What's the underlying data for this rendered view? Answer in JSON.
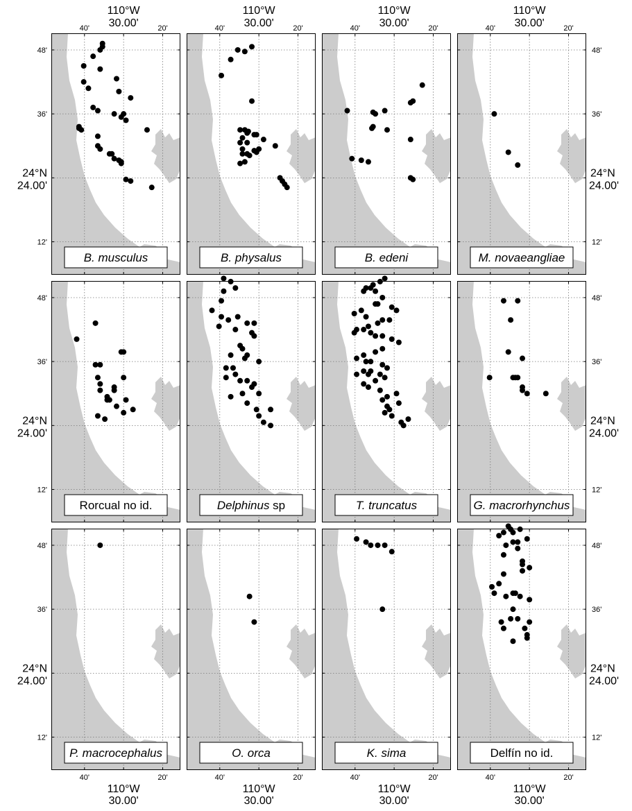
{
  "axis_labels": {
    "lon_deg": "110°W",
    "lon_min": "30.00'",
    "lat_deg": "24°N",
    "lat_min": "24.00'",
    "x_ticks": [
      "40'",
      "20'"
    ],
    "y_ticks": [
      "48'",
      "36'",
      "12'"
    ]
  },
  "colors": {
    "land": "#cccccc",
    "sea": "#ffffff",
    "points": "#000000",
    "grid": "#777777"
  },
  "chart_data": {
    "type": "scatter",
    "grid": true,
    "xlim": [
      -110.808,
      -110.258
    ],
    "ylim": [
      24.097,
      24.852
    ],
    "x_ticks": [
      -110.6667,
      -110.5,
      -110.3333
    ],
    "y_ticks": [
      24.2,
      24.4,
      24.6,
      24.8
    ],
    "panels": [
      {
        "label": "B. musculus",
        "italic": true,
        "points": [
          [
            -110.59,
            24.82
          ],
          [
            -110.59,
            24.81
          ],
          [
            -110.6,
            24.8
          ],
          [
            -110.63,
            24.78
          ],
          [
            -110.67,
            24.75
          ],
          [
            -110.6,
            24.74
          ],
          [
            -110.53,
            24.71
          ],
          [
            -110.67,
            24.7
          ],
          [
            -110.65,
            24.68
          ],
          [
            -110.52,
            24.67
          ],
          [
            -110.47,
            24.65
          ],
          [
            -110.63,
            24.62
          ],
          [
            -110.61,
            24.61
          ],
          [
            -110.5,
            24.6
          ],
          [
            -110.54,
            24.6
          ],
          [
            -110.49,
            24.58
          ],
          [
            -110.51,
            24.59
          ],
          [
            -110.69,
            24.56
          ],
          [
            -110.68,
            24.55
          ],
          [
            -110.69,
            24.555
          ],
          [
            -110.4,
            24.55
          ],
          [
            -110.61,
            24.53
          ],
          [
            -110.61,
            24.5
          ],
          [
            -110.6,
            24.49
          ],
          [
            -110.55,
            24.475
          ],
          [
            -110.56,
            24.475
          ],
          [
            -110.54,
            24.46
          ],
          [
            -110.52,
            24.455
          ],
          [
            -110.51,
            24.45
          ],
          [
            -110.51,
            24.445
          ],
          [
            -110.49,
            24.395
          ],
          [
            -110.47,
            24.39
          ],
          [
            -110.38,
            24.37
          ]
        ]
      },
      {
        "label": "B. physalus",
        "italic": true,
        "points": [
          [
            -110.53,
            24.81
          ],
          [
            -110.59,
            24.8
          ],
          [
            -110.56,
            24.795
          ],
          [
            -110.62,
            24.77
          ],
          [
            -110.66,
            24.72
          ],
          [
            -110.53,
            24.64
          ],
          [
            -110.56,
            24.55
          ],
          [
            -110.58,
            24.55
          ],
          [
            -110.55,
            24.54
          ],
          [
            -110.51,
            24.535
          ],
          [
            -110.52,
            24.535
          ],
          [
            -110.57,
            24.525
          ],
          [
            -110.48,
            24.52
          ],
          [
            -110.58,
            24.51
          ],
          [
            -110.55,
            24.51
          ],
          [
            -110.57,
            24.49
          ],
          [
            -110.54,
            24.47
          ],
          [
            -110.5,
            24.49
          ],
          [
            -110.51,
            24.48
          ],
          [
            -110.43,
            24.5
          ],
          [
            -110.52,
            24.485
          ],
          [
            -110.57,
            24.475
          ],
          [
            -110.55,
            24.475
          ],
          [
            -110.56,
            24.45
          ],
          [
            -110.58,
            24.445
          ],
          [
            -110.41,
            24.4
          ],
          [
            -110.4,
            24.39
          ],
          [
            -110.39,
            24.38
          ],
          [
            -110.38,
            24.37
          ],
          [
            -110.545,
            24.545
          ]
        ]
      },
      {
        "label": "B. edeni",
        "italic": true,
        "points": [
          [
            -110.38,
            24.69
          ],
          [
            -110.42,
            24.64
          ],
          [
            -110.43,
            24.635
          ],
          [
            -110.7,
            24.61
          ],
          [
            -110.59,
            24.605
          ],
          [
            -110.58,
            24.6
          ],
          [
            -110.54,
            24.61
          ],
          [
            -110.59,
            24.56
          ],
          [
            -110.53,
            24.55
          ],
          [
            -110.43,
            24.52
          ],
          [
            -110.68,
            24.46
          ],
          [
            -110.64,
            24.455
          ],
          [
            -110.61,
            24.45
          ],
          [
            -110.43,
            24.4
          ],
          [
            -110.42,
            24.395
          ],
          [
            -110.595,
            24.555
          ]
        ]
      },
      {
        "label": "M. novaeangliae",
        "italic": true,
        "points": [
          [
            -110.65,
            24.6
          ],
          [
            -110.59,
            24.48
          ],
          [
            -110.55,
            24.44
          ]
        ]
      },
      {
        "label": "Rorcual no id.",
        "italic": false,
        "points": [
          [
            -110.7,
            24.67
          ],
          [
            -110.62,
            24.72
          ],
          [
            -110.51,
            24.63
          ],
          [
            -110.5,
            24.63
          ],
          [
            -110.62,
            24.59
          ],
          [
            -110.6,
            24.59
          ],
          [
            -110.61,
            24.55
          ],
          [
            -110.5,
            24.55
          ],
          [
            -110.6,
            24.53
          ],
          [
            -110.54,
            24.52
          ],
          [
            -110.6,
            24.51
          ],
          [
            -110.54,
            24.51
          ],
          [
            -110.57,
            24.49
          ],
          [
            -110.57,
            24.48
          ],
          [
            -110.56,
            24.48
          ],
          [
            -110.49,
            24.48
          ],
          [
            -110.53,
            24.46
          ],
          [
            -110.5,
            24.44
          ],
          [
            -110.46,
            24.45
          ],
          [
            -110.61,
            24.43
          ],
          [
            -110.58,
            24.42
          ]
        ]
      },
      {
        "label": "Delphinus sp",
        "italic": true,
        "partial_italic": true,
        "points": [
          [
            -110.65,
            24.86
          ],
          [
            -110.62,
            24.85
          ],
          [
            -110.65,
            24.82
          ],
          [
            -110.6,
            24.83
          ],
          [
            -110.7,
            24.76
          ],
          [
            -110.66,
            24.74
          ],
          [
            -110.63,
            24.73
          ],
          [
            -110.55,
            24.72
          ],
          [
            -110.67,
            24.71
          ],
          [
            -110.6,
            24.7
          ],
          [
            -110.53,
            24.69
          ],
          [
            -110.52,
            24.68
          ],
          [
            -110.58,
            24.65
          ],
          [
            -110.57,
            24.64
          ],
          [
            -110.55,
            24.62
          ],
          [
            -110.62,
            24.62
          ],
          [
            -110.56,
            24.61
          ],
          [
            -110.5,
            24.6
          ],
          [
            -110.61,
            24.58
          ],
          [
            -110.6,
            24.56
          ],
          [
            -110.64,
            24.55
          ],
          [
            -110.58,
            24.54
          ],
          [
            -110.55,
            24.54
          ],
          [
            -110.52,
            24.53
          ],
          [
            -110.53,
            24.52
          ],
          [
            -110.5,
            24.5
          ],
          [
            -110.62,
            24.49
          ],
          [
            -110.55,
            24.47
          ],
          [
            -110.51,
            24.45
          ],
          [
            -110.5,
            24.43
          ],
          [
            -110.45,
            24.45
          ],
          [
            -110.45,
            24.4
          ],
          [
            -110.48,
            24.41
          ],
          [
            -110.57,
            24.5
          ],
          [
            -110.64,
            24.58
          ],
          [
            -110.66,
            24.79
          ],
          [
            -110.59,
            24.74
          ],
          [
            -110.52,
            24.72
          ]
        ]
      },
      {
        "label": "T. truncatus",
        "italic": true,
        "points": [
          [
            -110.54,
            24.86
          ],
          [
            -110.56,
            24.85
          ],
          [
            -110.59,
            24.84
          ],
          [
            -110.6,
            24.83
          ],
          [
            -110.62,
            24.83
          ],
          [
            -110.63,
            24.82
          ],
          [
            -110.58,
            24.82
          ],
          [
            -110.55,
            24.8
          ],
          [
            -110.58,
            24.78
          ],
          [
            -110.57,
            24.78
          ],
          [
            -110.64,
            24.76
          ],
          [
            -110.67,
            24.75
          ],
          [
            -110.62,
            24.74
          ],
          [
            -110.51,
            24.77
          ],
          [
            -110.49,
            24.76
          ],
          [
            -110.52,
            24.73
          ],
          [
            -110.55,
            24.73
          ],
          [
            -110.57,
            24.72
          ],
          [
            -110.61,
            24.71
          ],
          [
            -110.63,
            24.7
          ],
          [
            -110.66,
            24.7
          ],
          [
            -110.67,
            24.69
          ],
          [
            -110.6,
            24.69
          ],
          [
            -110.58,
            24.68
          ],
          [
            -110.55,
            24.68
          ],
          [
            -110.51,
            24.67
          ],
          [
            -110.48,
            24.66
          ],
          [
            -110.55,
            24.64
          ],
          [
            -110.58,
            24.63
          ],
          [
            -110.63,
            24.62
          ],
          [
            -110.66,
            24.61
          ],
          [
            -110.62,
            24.6
          ],
          [
            -110.6,
            24.6
          ],
          [
            -110.55,
            24.59
          ],
          [
            -110.53,
            24.58
          ],
          [
            -110.63,
            24.57
          ],
          [
            -110.6,
            24.57
          ],
          [
            -110.66,
            24.56
          ],
          [
            -110.61,
            24.56
          ],
          [
            -110.56,
            24.56
          ],
          [
            -110.54,
            24.55
          ],
          [
            -110.58,
            24.54
          ],
          [
            -110.63,
            24.53
          ],
          [
            -110.61,
            24.52
          ],
          [
            -110.56,
            24.51
          ],
          [
            -110.49,
            24.5
          ],
          [
            -110.53,
            24.49
          ],
          [
            -110.55,
            24.48
          ],
          [
            -110.48,
            24.47
          ],
          [
            -110.53,
            24.46
          ],
          [
            -110.52,
            24.45
          ],
          [
            -110.54,
            24.44
          ],
          [
            -110.51,
            24.43
          ],
          [
            -110.44,
            24.42
          ],
          [
            -110.47,
            24.41
          ],
          [
            -110.46,
            24.4
          ]
        ]
      },
      {
        "label": "G. macrorhynchus",
        "italic": true,
        "points": [
          [
            -110.61,
            24.79
          ],
          [
            -110.55,
            24.79
          ],
          [
            -110.58,
            24.73
          ],
          [
            -110.59,
            24.63
          ],
          [
            -110.53,
            24.61
          ],
          [
            -110.67,
            24.55
          ],
          [
            -110.57,
            24.55
          ],
          [
            -110.56,
            24.55
          ],
          [
            -110.55,
            24.55
          ],
          [
            -110.53,
            24.52
          ],
          [
            -110.53,
            24.51
          ],
          [
            -110.51,
            24.5
          ],
          [
            -110.43,
            24.5
          ]
        ]
      },
      {
        "label": "P. macrocephalus",
        "italic": true,
        "points": [
          [
            -110.6,
            24.8
          ]
        ]
      },
      {
        "label": "O. orca",
        "italic": true,
        "points": [
          [
            -110.54,
            24.64
          ],
          [
            -110.52,
            24.56
          ]
        ]
      },
      {
        "label": "K. sima",
        "italic": true,
        "points": [
          [
            -110.66,
            24.82
          ],
          [
            -110.62,
            24.81
          ],
          [
            -110.6,
            24.8
          ],
          [
            -110.57,
            24.8
          ],
          [
            -110.54,
            24.8
          ],
          [
            -110.51,
            24.78
          ],
          [
            -110.55,
            24.6
          ]
        ]
      },
      {
        "label": "Delfín no id.",
        "italic": false,
        "points": [
          [
            -110.59,
            24.86
          ],
          [
            -110.58,
            24.85
          ],
          [
            -110.54,
            24.85
          ],
          [
            -110.61,
            24.84
          ],
          [
            -110.57,
            24.84
          ],
          [
            -110.63,
            24.83
          ],
          [
            -110.51,
            24.82
          ],
          [
            -110.57,
            24.81
          ],
          [
            -110.55,
            24.81
          ],
          [
            -110.6,
            24.8
          ],
          [
            -110.55,
            24.79
          ],
          [
            -110.61,
            24.77
          ],
          [
            -110.53,
            24.75
          ],
          [
            -110.53,
            24.74
          ],
          [
            -110.5,
            24.73
          ],
          [
            -110.53,
            24.72
          ],
          [
            -110.61,
            24.71
          ],
          [
            -110.63,
            24.68
          ],
          [
            -110.66,
            24.67
          ],
          [
            -110.65,
            24.65
          ],
          [
            -110.57,
            24.65
          ],
          [
            -110.56,
            24.65
          ],
          [
            -110.6,
            24.64
          ],
          [
            -110.54,
            24.64
          ],
          [
            -110.5,
            24.63
          ],
          [
            -110.57,
            24.6
          ],
          [
            -110.58,
            24.57
          ],
          [
            -110.55,
            24.57
          ],
          [
            -110.5,
            24.56
          ],
          [
            -110.61,
            24.54
          ],
          [
            -110.52,
            24.54
          ],
          [
            -110.51,
            24.52
          ],
          [
            -110.51,
            24.51
          ],
          [
            -110.57,
            24.5
          ],
          [
            -110.62,
            24.56
          ]
        ]
      }
    ]
  }
}
